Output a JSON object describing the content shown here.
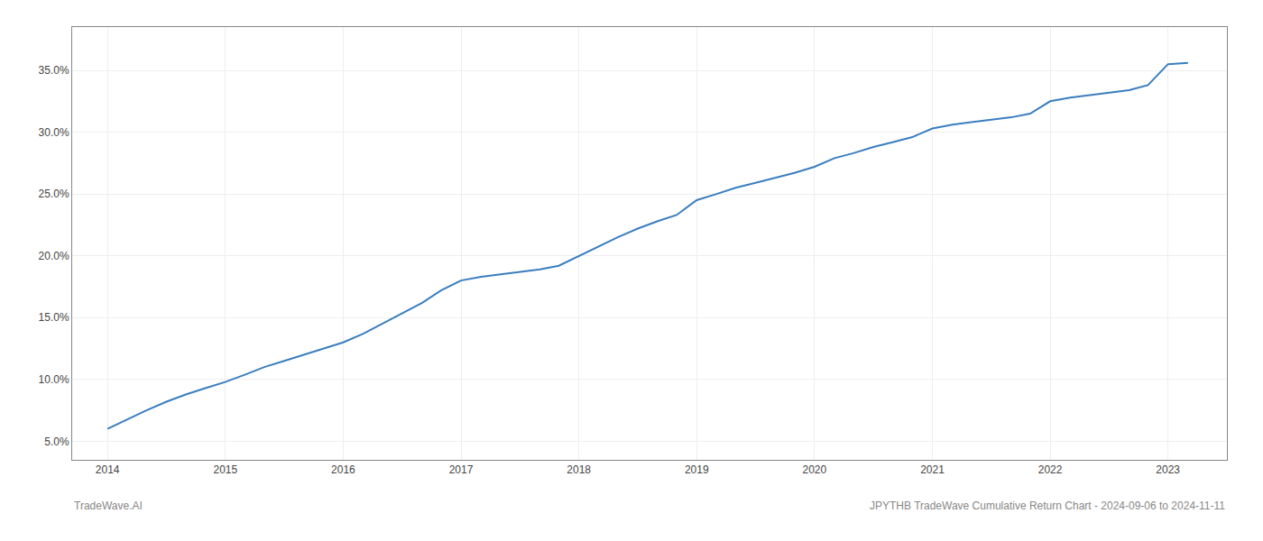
{
  "chart_data": {
    "type": "line",
    "x": [
      2014,
      2014.17,
      2014.33,
      2014.5,
      2014.67,
      2014.83,
      2015,
      2015.17,
      2015.33,
      2015.5,
      2015.67,
      2015.83,
      2016,
      2016.17,
      2016.33,
      2016.5,
      2016.67,
      2016.83,
      2017,
      2017.17,
      2017.33,
      2017.5,
      2017.67,
      2017.83,
      2018,
      2018.17,
      2018.33,
      2018.5,
      2018.67,
      2018.83,
      2019,
      2019.17,
      2019.33,
      2019.5,
      2019.67,
      2019.83,
      2020,
      2020.17,
      2020.33,
      2020.5,
      2020.67,
      2020.83,
      2021,
      2021.17,
      2021.33,
      2021.5,
      2021.67,
      2021.83,
      2022,
      2022.17,
      2022.33,
      2022.5,
      2022.67,
      2022.83,
      2023,
      2023.17
    ],
    "values": [
      6.0,
      6.8,
      7.5,
      8.2,
      8.8,
      9.3,
      9.8,
      10.4,
      11.0,
      11.5,
      12.0,
      12.5,
      13.0,
      13.7,
      14.5,
      15.3,
      16.2,
      17.2,
      18.0,
      18.3,
      18.5,
      18.7,
      18.9,
      19.2,
      20.0,
      20.8,
      21.5,
      22.2,
      22.8,
      23.3,
      24.5,
      25.0,
      25.5,
      25.9,
      26.3,
      26.7,
      27.2,
      27.9,
      28.3,
      28.8,
      29.2,
      29.6,
      30.3,
      30.6,
      30.8,
      31.0,
      31.2,
      31.5,
      32.5,
      32.8,
      33.0,
      33.2,
      33.4,
      33.8,
      35.5,
      35.6
    ],
    "color": "#3a7ebf",
    "xlim": [
      2013.7,
      2023.5
    ],
    "ylim": [
      3.5,
      38.5
    ],
    "xticks": [
      2014,
      2015,
      2016,
      2017,
      2018,
      2019,
      2020,
      2021,
      2022,
      2023
    ],
    "yticks": [
      {
        "value": 5.0,
        "label": "5.0%"
      },
      {
        "value": 10.0,
        "label": "10.0%"
      },
      {
        "value": 15.0,
        "label": "15.0%"
      },
      {
        "value": 20.0,
        "label": "20.0%"
      },
      {
        "value": 25.0,
        "label": "25.0%"
      },
      {
        "value": 30.0,
        "label": "30.0%"
      },
      {
        "value": 35.0,
        "label": "35.0%"
      }
    ],
    "grid": true,
    "annotations": [
      "TradeWave.AI",
      "JPYTHB TradeWave Cumulative Return Chart - 2024-09-06 to 2024-11-11"
    ]
  }
}
